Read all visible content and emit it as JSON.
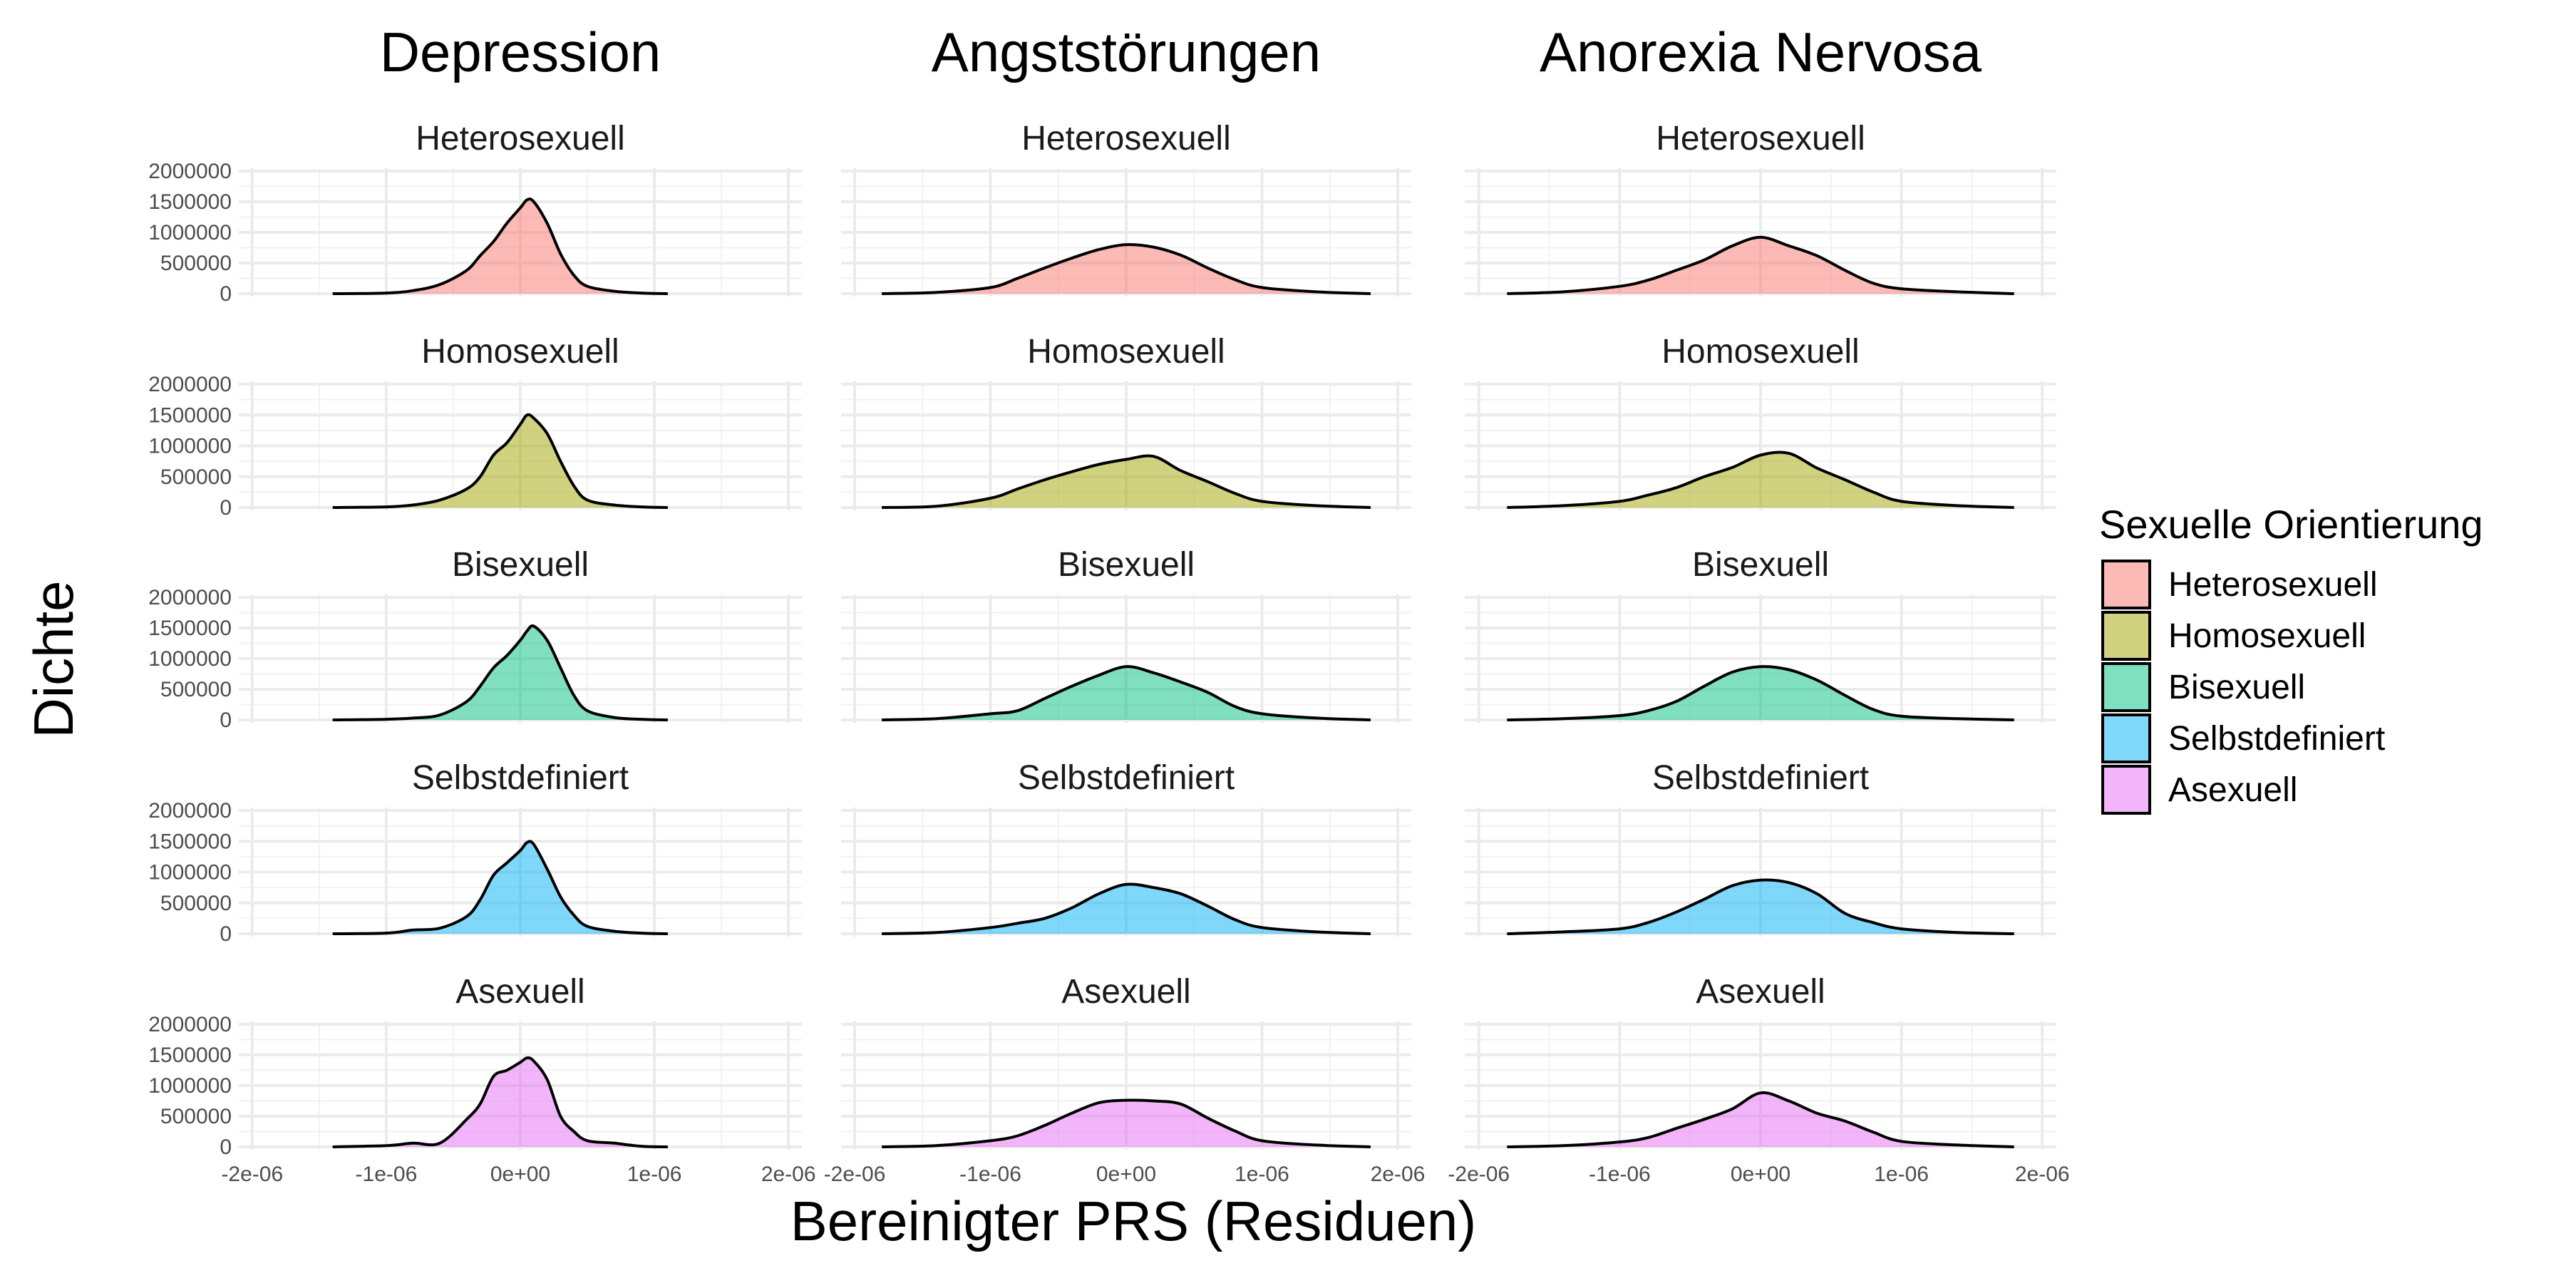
{
  "chart_data": {
    "type": "area",
    "chart_kind": "density",
    "facet_layout": "rows: orientation, columns: disorder",
    "columns": [
      "Depression",
      "Angststörungen",
      "Anorexia Nervosa"
    ],
    "rows": [
      "Heterosexuell",
      "Homosexuell",
      "Bisexuell",
      "Selbstdefiniert",
      "Asexuell"
    ],
    "xlabel": "Bereinigter PRS (Residuen)",
    "ylabel": "Dichte",
    "xlim": [
      -2.1e-06,
      2.1e-06
    ],
    "ylim": [
      0,
      2000000
    ],
    "x_ticks": [
      -2e-06,
      -1e-06,
      0,
      1e-06,
      2e-06
    ],
    "x_tick_labels": [
      "-2e-06",
      "-1e-06",
      "0e+00",
      "1e-06",
      "2e-06"
    ],
    "y_ticks": [
      0,
      500000,
      1000000,
      1500000,
      2000000
    ],
    "y_tick_labels": [
      "0",
      "500000",
      "1000000",
      "1500000",
      "2000000"
    ],
    "grid": true,
    "legend": {
      "title": "Sexuelle Orientierung",
      "position": "right",
      "entries": [
        "Heterosexuell",
        "Homosexuell",
        "Bisexuell",
        "Selbstdefiniert",
        "Asexuell"
      ]
    },
    "colors": {
      "Heterosexuell": "#F8766D",
      "Homosexuell": "#A3A500",
      "Bisexuell": "#00BF7D",
      "Selbstdefiniert": "#00B0F6",
      "Asexuell": "#E76BF3"
    },
    "series": {
      "Depression": {
        "Heterosexuell": {
          "x": [
            -1.4e-06,
            -1e-06,
            -8e-07,
            -6e-07,
            -4e-07,
            -3e-07,
            -2e-07,
            -1e-07,
            0.0,
            5e-08,
            1e-07,
            2e-07,
            3e-07,
            4e-07,
            5e-07,
            7e-07,
            9e-07,
            1.1e-06
          ],
          "y": [
            0,
            10000,
            50000,
            150000,
            380000,
            620000,
            850000,
            1150000,
            1400000,
            1530000,
            1500000,
            1150000,
            650000,
            300000,
            120000,
            40000,
            10000,
            0
          ]
        },
        "Homosexuell": {
          "x": [
            -1.4e-06,
            -1e-06,
            -8e-07,
            -6e-07,
            -4e-07,
            -3e-07,
            -2e-07,
            -1e-07,
            0.0,
            5e-08,
            1e-07,
            2e-07,
            3e-07,
            4e-07,
            5e-07,
            7e-07,
            9e-07,
            1.1e-06
          ],
          "y": [
            0,
            10000,
            40000,
            120000,
            300000,
            500000,
            850000,
            1050000,
            1350000,
            1500000,
            1450000,
            1200000,
            750000,
            350000,
            120000,
            40000,
            10000,
            0
          ]
        },
        "Bisexuell": {
          "x": [
            -1.4e-06,
            -1e-06,
            -8e-07,
            -6e-07,
            -4e-07,
            -3e-07,
            -2e-07,
            -1e-07,
            0.0,
            5e-08,
            1e-07,
            2e-07,
            3e-07,
            4e-07,
            5e-07,
            7e-07,
            9e-07,
            1.1e-06
          ],
          "y": [
            0,
            10000,
            30000,
            80000,
            300000,
            550000,
            850000,
            1050000,
            1300000,
            1450000,
            1530000,
            1300000,
            850000,
            400000,
            150000,
            40000,
            10000,
            0
          ]
        },
        "Selbstdefiniert": {
          "x": [
            -1.4e-06,
            -1e-06,
            -8e-07,
            -6e-07,
            -4e-07,
            -3e-07,
            -2e-07,
            -1e-07,
            0.0,
            5e-08,
            1e-07,
            2e-07,
            3e-07,
            4e-07,
            5e-07,
            7e-07,
            9e-07,
            1.1e-06
          ],
          "y": [
            0,
            10000,
            60000,
            90000,
            280000,
            550000,
            950000,
            1150000,
            1350000,
            1480000,
            1450000,
            1050000,
            600000,
            300000,
            120000,
            40000,
            10000,
            0
          ]
        },
        "Asexuell": {
          "x": [
            -1.4e-06,
            -1e-06,
            -8e-07,
            -6e-07,
            -4e-07,
            -3e-07,
            -2e-07,
            -1e-07,
            0.0,
            5e-08,
            1e-07,
            2e-07,
            3e-07,
            4e-07,
            5e-07,
            7e-07,
            9e-07,
            1.1e-06
          ],
          "y": [
            0,
            20000,
            60000,
            60000,
            450000,
            700000,
            1150000,
            1250000,
            1380000,
            1450000,
            1400000,
            1100000,
            500000,
            250000,
            100000,
            60000,
            10000,
            0
          ]
        }
      },
      "Angststörungen": {
        "Heterosexuell": {
          "x": [
            -1.8e-06,
            -1.4e-06,
            -1e-06,
            -8e-07,
            -6e-07,
            -4e-07,
            -2e-07,
            0.0,
            2e-07,
            4e-07,
            6e-07,
            8e-07,
            1e-06,
            1.4e-06,
            1.8e-06
          ],
          "y": [
            0,
            20000,
            100000,
            250000,
            420000,
            580000,
            720000,
            800000,
            760000,
            630000,
            420000,
            230000,
            100000,
            30000,
            0
          ]
        },
        "Homosexuell": {
          "x": [
            -1.8e-06,
            -1.4e-06,
            -1e-06,
            -8e-07,
            -6e-07,
            -4e-07,
            -2e-07,
            0.0,
            2e-07,
            4e-07,
            6e-07,
            8e-07,
            1e-06,
            1.4e-06,
            1.8e-06
          ],
          "y": [
            0,
            20000,
            150000,
            300000,
            450000,
            580000,
            700000,
            780000,
            830000,
            600000,
            420000,
            230000,
            100000,
            30000,
            0
          ]
        },
        "Bisexuell": {
          "x": [
            -1.8e-06,
            -1.4e-06,
            -1e-06,
            -8e-07,
            -6e-07,
            -4e-07,
            -2e-07,
            0.0,
            2e-07,
            4e-07,
            6e-07,
            8e-07,
            1e-06,
            1.4e-06,
            1.8e-06
          ],
          "y": [
            0,
            20000,
            100000,
            150000,
            350000,
            550000,
            730000,
            870000,
            770000,
            620000,
            450000,
            220000,
            100000,
            30000,
            0
          ]
        },
        "Selbstdefiniert": {
          "x": [
            -1.8e-06,
            -1.4e-06,
            -1e-06,
            -8e-07,
            -6e-07,
            -4e-07,
            -2e-07,
            0.0,
            2e-07,
            4e-07,
            6e-07,
            8e-07,
            1e-06,
            1.4e-06,
            1.8e-06
          ],
          "y": [
            0,
            20000,
            100000,
            170000,
            250000,
            420000,
            650000,
            800000,
            750000,
            650000,
            450000,
            230000,
            100000,
            30000,
            0
          ]
        },
        "Asexuell": {
          "x": [
            -1.8e-06,
            -1.4e-06,
            -1e-06,
            -8e-07,
            -6e-07,
            -4e-07,
            -2e-07,
            0.0,
            2e-07,
            4e-07,
            6e-07,
            8e-07,
            1e-06,
            1.4e-06,
            1.8e-06
          ],
          "y": [
            0,
            20000,
            100000,
            180000,
            350000,
            550000,
            720000,
            760000,
            750000,
            700000,
            470000,
            260000,
            100000,
            30000,
            0
          ]
        }
      },
      "Anorexia Nervosa": {
        "Heterosexuell": {
          "x": [
            -1.8e-06,
            -1.4e-06,
            -1e-06,
            -8e-07,
            -6e-07,
            -4e-07,
            -2e-07,
            0.0,
            2e-07,
            4e-07,
            6e-07,
            8e-07,
            1e-06,
            1.4e-06,
            1.8e-06
          ],
          "y": [
            0,
            30000,
            120000,
            220000,
            380000,
            550000,
            780000,
            920000,
            780000,
            620000,
            380000,
            170000,
            80000,
            30000,
            0
          ]
        },
        "Homosexuell": {
          "x": [
            -1.8e-06,
            -1.4e-06,
            -1e-06,
            -8e-07,
            -6e-07,
            -4e-07,
            -2e-07,
            0.0,
            2e-07,
            4e-07,
            6e-07,
            8e-07,
            1e-06,
            1.4e-06,
            1.8e-06
          ],
          "y": [
            0,
            30000,
            100000,
            200000,
            320000,
            500000,
            650000,
            850000,
            880000,
            640000,
            450000,
            250000,
            100000,
            30000,
            0
          ]
        },
        "Bisexuell": {
          "x": [
            -1.8e-06,
            -1.4e-06,
            -1e-06,
            -8e-07,
            -6e-07,
            -4e-07,
            -2e-07,
            0.0,
            2e-07,
            4e-07,
            6e-07,
            8e-07,
            1e-06,
            1.4e-06,
            1.8e-06
          ],
          "y": [
            0,
            20000,
            70000,
            150000,
            300000,
            550000,
            780000,
            870000,
            820000,
            650000,
            400000,
            170000,
            60000,
            20000,
            0
          ]
        },
        "Selbstdefiniert": {
          "x": [
            -1.8e-06,
            -1.4e-06,
            -1e-06,
            -8e-07,
            -6e-07,
            -4e-07,
            -2e-07,
            0.0,
            2e-07,
            4e-07,
            6e-07,
            8e-07,
            1e-06,
            1.4e-06,
            1.8e-06
          ],
          "y": [
            0,
            30000,
            80000,
            180000,
            350000,
            560000,
            780000,
            870000,
            830000,
            650000,
            330000,
            180000,
            80000,
            20000,
            0
          ]
        },
        "Asexuell": {
          "x": [
            -1.8e-06,
            -1.4e-06,
            -1e-06,
            -8e-07,
            -6e-07,
            -4e-07,
            -2e-07,
            0.0,
            2e-07,
            4e-07,
            6e-07,
            8e-07,
            1e-06,
            1.4e-06,
            1.8e-06
          ],
          "y": [
            0,
            20000,
            80000,
            150000,
            300000,
            450000,
            620000,
            880000,
            750000,
            550000,
            420000,
            240000,
            90000,
            30000,
            0
          ]
        }
      }
    }
  }
}
